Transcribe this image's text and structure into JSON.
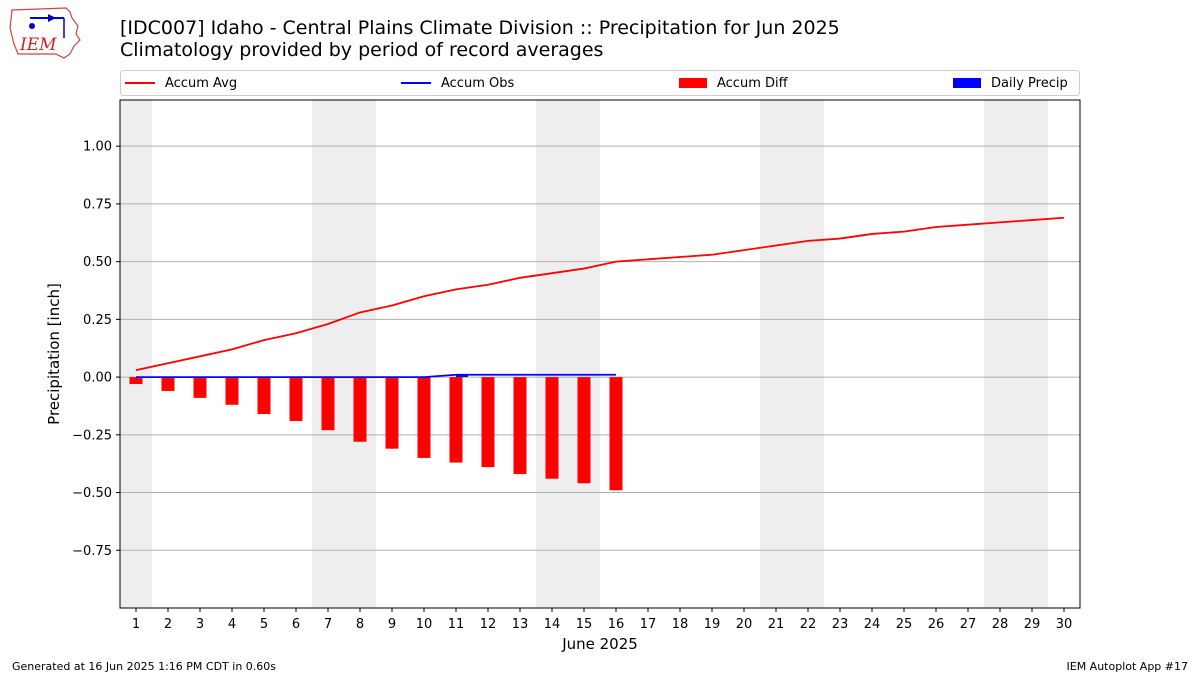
{
  "header": {
    "logo_text": "IEM",
    "title": "[IDC007] Idaho - Central Plains Climate Division :: Precipitation for Jun 2025",
    "subtitle": "Climatology provided by period of record averages"
  },
  "legend": {
    "placement": "top",
    "items": [
      {
        "label": "Accum Avg",
        "kind": "line",
        "color": "#ff0000"
      },
      {
        "label": "Accum Obs",
        "kind": "line",
        "color": "#0000ff"
      },
      {
        "label": "Accum Diff",
        "kind": "bar",
        "color": "#ff0000"
      },
      {
        "label": "Daily Precip",
        "kind": "bar",
        "color": "#0000ff"
      }
    ]
  },
  "chart_data": {
    "type": "line",
    "xlabel": "June 2025",
    "ylabel": "Precipitation [inch]",
    "xlim": [
      0.5,
      30.5
    ],
    "ylim": [
      -1.0,
      1.2
    ],
    "x_ticks": [
      1,
      2,
      3,
      4,
      5,
      6,
      7,
      8,
      9,
      10,
      11,
      12,
      13,
      14,
      15,
      16,
      17,
      18,
      19,
      20,
      21,
      22,
      23,
      24,
      25,
      26,
      27,
      28,
      29,
      30
    ],
    "y_ticks": [
      -0.75,
      -0.5,
      -0.25,
      0.0,
      0.25,
      0.5,
      0.75,
      1.0
    ],
    "y_tick_labels": [
      "−0.75",
      "−0.50",
      "−0.25",
      "0.00",
      "0.25",
      "0.50",
      "0.75",
      "1.00"
    ],
    "grid": "horizontal",
    "weekend_shading": [
      [
        0.5,
        1.5
      ],
      [
        6.5,
        8.5
      ],
      [
        13.5,
        15.5
      ],
      [
        20.5,
        22.5
      ],
      [
        27.5,
        29.5
      ]
    ],
    "colors": {
      "accum_avg": "#ff0000",
      "accum_obs": "#0000ff",
      "accum_diff": "#ff0000",
      "daily_precip": "#0000ff",
      "shade": "#eeeeee",
      "grid": "#b0b0b0"
    },
    "series": [
      {
        "name": "Accum Avg",
        "kind": "line",
        "x": [
          1,
          2,
          3,
          4,
          5,
          6,
          7,
          8,
          9,
          10,
          11,
          12,
          13,
          14,
          15,
          16,
          17,
          18,
          19,
          20,
          21,
          22,
          23,
          24,
          25,
          26,
          27,
          28,
          29,
          30
        ],
        "values": [
          0.03,
          0.06,
          0.09,
          0.12,
          0.16,
          0.19,
          0.23,
          0.28,
          0.31,
          0.35,
          0.38,
          0.4,
          0.43,
          0.45,
          0.47,
          0.5,
          0.51,
          0.52,
          0.53,
          0.55,
          0.57,
          0.59,
          0.6,
          0.62,
          0.63,
          0.65,
          0.66,
          0.67,
          0.68,
          0.69
        ]
      },
      {
        "name": "Accum Obs",
        "kind": "line",
        "x": [
          1,
          2,
          3,
          4,
          5,
          6,
          7,
          8,
          9,
          10,
          11,
          12,
          13,
          14,
          15,
          16
        ],
        "values": [
          0.0,
          0.0,
          0.0,
          0.0,
          0.0,
          0.0,
          0.0,
          0.0,
          0.0,
          0.0,
          0.01,
          0.01,
          0.01,
          0.01,
          0.01,
          0.01
        ]
      },
      {
        "name": "Accum Diff",
        "kind": "bar",
        "x": [
          1,
          2,
          3,
          4,
          5,
          6,
          7,
          8,
          9,
          10,
          11,
          12,
          13,
          14,
          15,
          16
        ],
        "values": [
          -0.03,
          -0.06,
          -0.09,
          -0.12,
          -0.16,
          -0.19,
          -0.23,
          -0.28,
          -0.31,
          -0.35,
          -0.37,
          -0.39,
          -0.42,
          -0.44,
          -0.46,
          -0.49
        ]
      },
      {
        "name": "Daily Precip",
        "kind": "bar",
        "x": [
          11
        ],
        "values": [
          0.01
        ]
      }
    ]
  },
  "footer": {
    "left": "Generated at 16 Jun 2025 1:16 PM CDT in 0.60s",
    "right": "IEM Autoplot App #17"
  }
}
